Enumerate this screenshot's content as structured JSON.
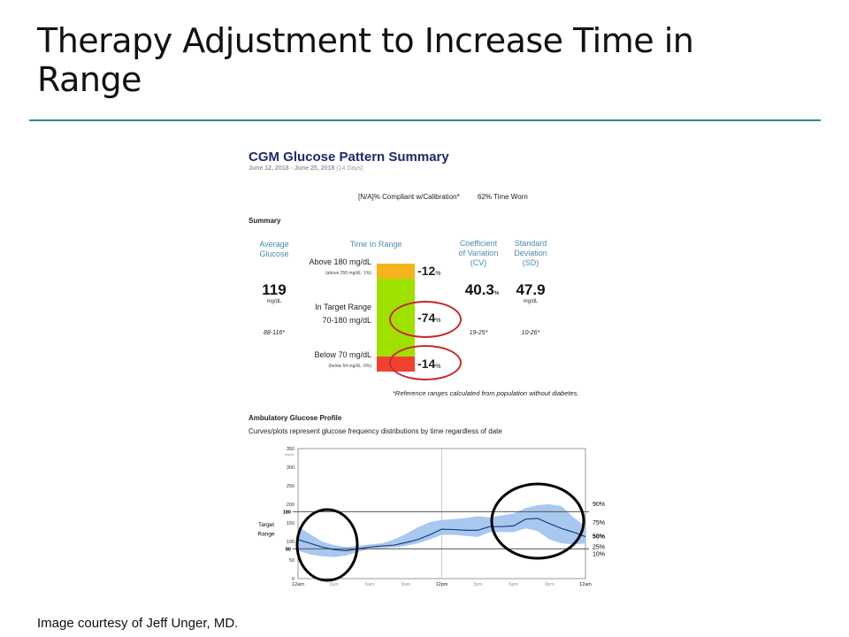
{
  "slide": {
    "title": "Therapy Adjustment to Increase Time in Range",
    "credit": "Image courtesy of Jeff Unger, MD.",
    "rule_color": "#2e8b9a"
  },
  "report": {
    "title": "CGM Glucose Pattern Summary",
    "date_range": "June 12, 2018 - June 25, 2018",
    "days": "(14 Days)",
    "compliance": "[N/A]% Compliant w/Calibration*",
    "time_worn": "62% Time Worn",
    "summary_label": "Summary",
    "avg_glucose": {
      "header": "Average Glucose",
      "value": "119",
      "unit": "mg/dL",
      "ref": "88-116*"
    },
    "time_in_range": {
      "header": "Time In Range",
      "above": {
        "label": "Above 180 mg/dL",
        "sub": "(above 250 mg/dL: 1%)",
        "value": "12",
        "pct": "%",
        "color": "#f5b31e"
      },
      "target": {
        "label": "In Target Range",
        "sub": "70-180 mg/dL",
        "value": "74",
        "pct": "%",
        "color": "#9ee000"
      },
      "below": {
        "label": "Below 70 mg/dL",
        "sub": "(below 54 mg/dL: 6%)",
        "value": "14",
        "pct": "%",
        "color": "#f0422e"
      }
    },
    "cv": {
      "header": "Coefficient of Variation (CV)",
      "value": "40.3",
      "pct": "%",
      "ref": "19-25*"
    },
    "sd": {
      "header": "Standard Deviation (SD)",
      "value": "47.9",
      "unit": "mg/dL",
      "ref": "10-26*"
    },
    "footnote": "*Reference ranges calculated from population without diabetes.",
    "agp_title": "Ambulatory Glucose Profile",
    "agp_desc": "Curves/plots represent glucose frequency distributions by time regardless of date"
  },
  "chart_data": {
    "type": "area",
    "ylabel": "mg/dL",
    "ylim": [
      0,
      350
    ],
    "yticks": [
      "0",
      "50",
      "100",
      "150",
      "200",
      "250",
      "300",
      "350"
    ],
    "target_lines": [
      "180",
      "80"
    ],
    "target_label": "Target Range",
    "xticks": [
      "12am",
      "3am",
      "6am",
      "9am",
      "12pm",
      "3pm",
      "6pm",
      "9pm",
      "12am"
    ],
    "percentile_labels": [
      "90%",
      "75%",
      "50%",
      "25%",
      "10%"
    ],
    "hours": [
      0,
      1,
      2,
      3,
      4,
      5,
      6,
      7,
      8,
      9,
      10,
      11,
      12,
      13,
      14,
      15,
      16,
      17,
      18,
      19,
      20,
      21,
      22,
      23,
      24
    ],
    "median": [
      105,
      95,
      85,
      78,
      75,
      80,
      85,
      88,
      90,
      97,
      105,
      118,
      133,
      132,
      130,
      130,
      140,
      140,
      142,
      160,
      162,
      148,
      135,
      125,
      113
    ],
    "p75": [
      140,
      120,
      100,
      90,
      85,
      88,
      92,
      95,
      105,
      120,
      138,
      152,
      158,
      160,
      163,
      168,
      165,
      170,
      175,
      190,
      198,
      200,
      195,
      165,
      140
    ],
    "p25": [
      75,
      65,
      60,
      58,
      62,
      72,
      80,
      82,
      84,
      88,
      95,
      105,
      118,
      118,
      115,
      112,
      125,
      125,
      125,
      135,
      128,
      105,
      95,
      92,
      95
    ],
    "band_color": "#a9c8f0",
    "line_color": "#1f3f7a"
  }
}
